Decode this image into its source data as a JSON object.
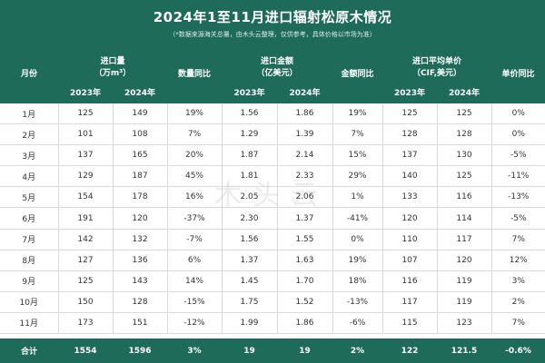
{
  "title": "2024年1至11月进口辐射松原木情况",
  "note": "（*数据来源海关总署，由木头云整理，仅供参考，具体价格以市场为准）",
  "headers": {
    "month": "月份",
    "volume": "进口量",
    "volume_unit": "（万m³）",
    "volume_yoy": "数量同比",
    "amount": "进口金额",
    "amount_unit": "（亿美元）",
    "amount_yoy": "金额同比",
    "price": "进口平均单价",
    "price_unit": "（CIF,美元）",
    "price_yoy": "单价同比",
    "y2023": "2023年",
    "y2024": "2024年"
  },
  "watermark": "木头云",
  "rows": [
    {
      "month": "1月",
      "v23": "125",
      "v24": "149",
      "vy": "19%",
      "a23": "1.56",
      "a24": "1.86",
      "ay": "19%",
      "p23": "125",
      "p24": "125",
      "py": "0%"
    },
    {
      "month": "2月",
      "v23": "101",
      "v24": "108",
      "vy": "7%",
      "a23": "1.29",
      "a24": "1.39",
      "ay": "7%",
      "p23": "128",
      "p24": "128",
      "py": "0%"
    },
    {
      "month": "3月",
      "v23": "137",
      "v24": "165",
      "vy": "20%",
      "a23": "1.87",
      "a24": "2.14",
      "ay": "15%",
      "p23": "137",
      "p24": "130",
      "py": "-5%"
    },
    {
      "month": "4月",
      "v23": "129",
      "v24": "187",
      "vy": "45%",
      "a23": "1.81",
      "a24": "2.33",
      "ay": "29%",
      "p23": "140",
      "p24": "125",
      "py": "-11%"
    },
    {
      "month": "5月",
      "v23": "154",
      "v24": "178",
      "vy": "16%",
      "a23": "2.05",
      "a24": "2.06",
      "ay": "1%",
      "p23": "133",
      "p24": "116",
      "py": "-13%"
    },
    {
      "month": "6月",
      "v23": "191",
      "v24": "120",
      "vy": "-37%",
      "a23": "2.30",
      "a24": "1.37",
      "ay": "-41%",
      "p23": "120",
      "p24": "114",
      "py": "-5%"
    },
    {
      "month": "7月",
      "v23": "142",
      "v24": "132",
      "vy": "-7%",
      "a23": "1.56",
      "a24": "1.55",
      "ay": "0%",
      "p23": "110",
      "p24": "117",
      "py": "7%"
    },
    {
      "month": "8月",
      "v23": "127",
      "v24": "136",
      "vy": "6%",
      "a23": "1.37",
      "a24": "1.63",
      "ay": "19%",
      "p23": "107",
      "p24": "120",
      "py": "12%"
    },
    {
      "month": "9月",
      "v23": "125",
      "v24": "143",
      "vy": "14%",
      "a23": "1.45",
      "a24": "1.70",
      "ay": "18%",
      "p23": "116",
      "p24": "119",
      "py": "3%"
    },
    {
      "month": "10月",
      "v23": "150",
      "v24": "128",
      "vy": "-15%",
      "a23": "1.75",
      "a24": "1.52",
      "ay": "-13%",
      "p23": "117",
      "p24": "119",
      "py": "2%"
    },
    {
      "month": "11月",
      "v23": "173",
      "v24": "151",
      "vy": "-12%",
      "a23": "1.99",
      "a24": "1.86",
      "ay": "-6%",
      "p23": "115",
      "p24": "123",
      "py": "7%"
    }
  ],
  "total": {
    "month": "合计",
    "v23": "1554",
    "v24": "1596",
    "vy": "3%",
    "a23": "19",
    "a24": "19",
    "ay": "2%",
    "p23": "122",
    "p24": "121.5",
    "py": "-0.6%"
  }
}
